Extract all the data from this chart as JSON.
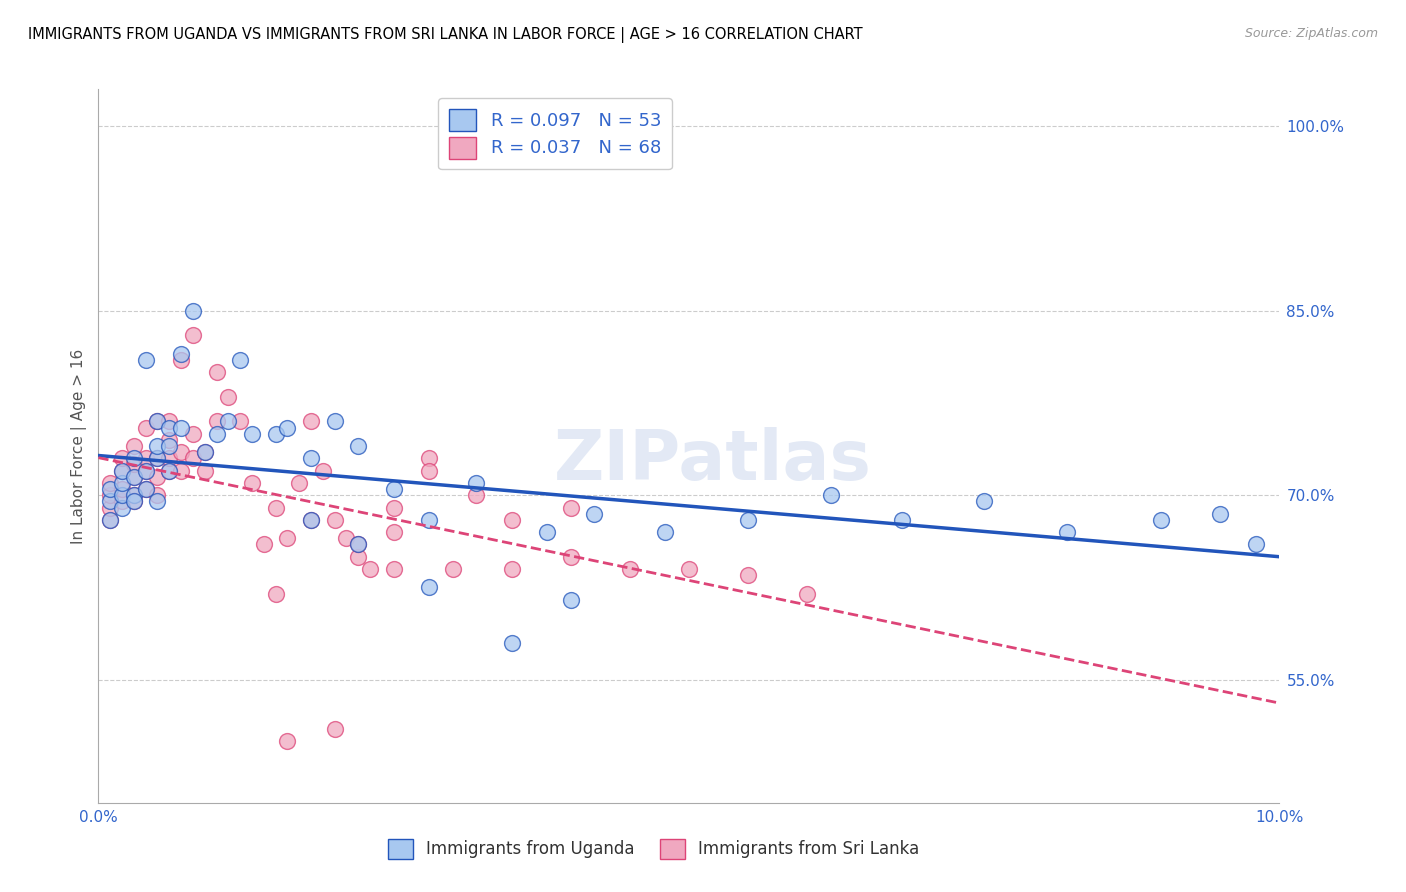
{
  "title": "IMMIGRANTS FROM UGANDA VS IMMIGRANTS FROM SRI LANKA IN LABOR FORCE | AGE > 16 CORRELATION CHART",
  "source": "Source: ZipAtlas.com",
  "ylabel": "In Labor Force | Age > 16",
  "xlim": [
    0.0,
    0.1
  ],
  "ylim": [
    0.45,
    1.03
  ],
  "y_ticks": [
    0.55,
    0.7,
    0.85,
    1.0
  ],
  "y_tick_labels": [
    "55.0%",
    "70.0%",
    "85.0%",
    "100.0%"
  ],
  "legend_r1": "R = 0.097",
  "legend_n1": "N = 53",
  "legend_r2": "R = 0.037",
  "legend_n2": "N = 68",
  "color_uganda": "#a8c8f0",
  "color_srilanka": "#f0a8c0",
  "color_line_uganda": "#2255bb",
  "color_line_srilanka": "#dd4477",
  "watermark": "ZIPatlas",
  "label_uganda": "Immigrants from Uganda",
  "label_srilanka": "Immigrants from Sri Lanka",
  "uganda_x": [
    0.001,
    0.001,
    0.001,
    0.002,
    0.002,
    0.002,
    0.002,
    0.003,
    0.003,
    0.003,
    0.003,
    0.004,
    0.004,
    0.004,
    0.005,
    0.005,
    0.005,
    0.005,
    0.006,
    0.006,
    0.006,
    0.007,
    0.007,
    0.008,
    0.009,
    0.01,
    0.011,
    0.012,
    0.013,
    0.015,
    0.016,
    0.018,
    0.02,
    0.022,
    0.025,
    0.028,
    0.032,
    0.038,
    0.042,
    0.048,
    0.055,
    0.062,
    0.068,
    0.075,
    0.082,
    0.09,
    0.095,
    0.028,
    0.035,
    0.04,
    0.018,
    0.022,
    0.098
  ],
  "uganda_y": [
    0.68,
    0.695,
    0.705,
    0.69,
    0.7,
    0.71,
    0.72,
    0.7,
    0.715,
    0.73,
    0.695,
    0.705,
    0.72,
    0.81,
    0.73,
    0.74,
    0.76,
    0.695,
    0.72,
    0.74,
    0.755,
    0.815,
    0.755,
    0.85,
    0.735,
    0.75,
    0.76,
    0.81,
    0.75,
    0.75,
    0.755,
    0.73,
    0.76,
    0.74,
    0.705,
    0.68,
    0.71,
    0.67,
    0.685,
    0.67,
    0.68,
    0.7,
    0.68,
    0.695,
    0.67,
    0.68,
    0.685,
    0.625,
    0.58,
    0.615,
    0.68,
    0.66,
    0.66
  ],
  "srilanka_x": [
    0.001,
    0.001,
    0.001,
    0.001,
    0.002,
    0.002,
    0.002,
    0.002,
    0.003,
    0.003,
    0.003,
    0.003,
    0.003,
    0.004,
    0.004,
    0.004,
    0.004,
    0.005,
    0.005,
    0.005,
    0.005,
    0.006,
    0.006,
    0.006,
    0.006,
    0.007,
    0.007,
    0.007,
    0.008,
    0.008,
    0.008,
    0.009,
    0.009,
    0.01,
    0.01,
    0.011,
    0.012,
    0.013,
    0.014,
    0.015,
    0.016,
    0.017,
    0.018,
    0.019,
    0.02,
    0.021,
    0.022,
    0.023,
    0.025,
    0.028,
    0.015,
    0.018,
    0.022,
    0.025,
    0.028,
    0.032,
    0.035,
    0.04,
    0.016,
    0.02,
    0.025,
    0.03,
    0.035,
    0.04,
    0.045,
    0.05,
    0.055,
    0.06
  ],
  "srilanka_y": [
    0.68,
    0.69,
    0.7,
    0.71,
    0.695,
    0.705,
    0.72,
    0.73,
    0.7,
    0.715,
    0.725,
    0.74,
    0.695,
    0.705,
    0.72,
    0.73,
    0.755,
    0.7,
    0.715,
    0.73,
    0.76,
    0.72,
    0.73,
    0.745,
    0.76,
    0.72,
    0.735,
    0.81,
    0.73,
    0.75,
    0.83,
    0.72,
    0.735,
    0.76,
    0.8,
    0.78,
    0.76,
    0.71,
    0.66,
    0.69,
    0.665,
    0.71,
    0.76,
    0.72,
    0.68,
    0.665,
    0.65,
    0.64,
    0.67,
    0.73,
    0.62,
    0.68,
    0.66,
    0.69,
    0.72,
    0.7,
    0.68,
    0.69,
    0.5,
    0.51,
    0.64,
    0.64,
    0.64,
    0.65,
    0.64,
    0.64,
    0.635,
    0.62
  ]
}
